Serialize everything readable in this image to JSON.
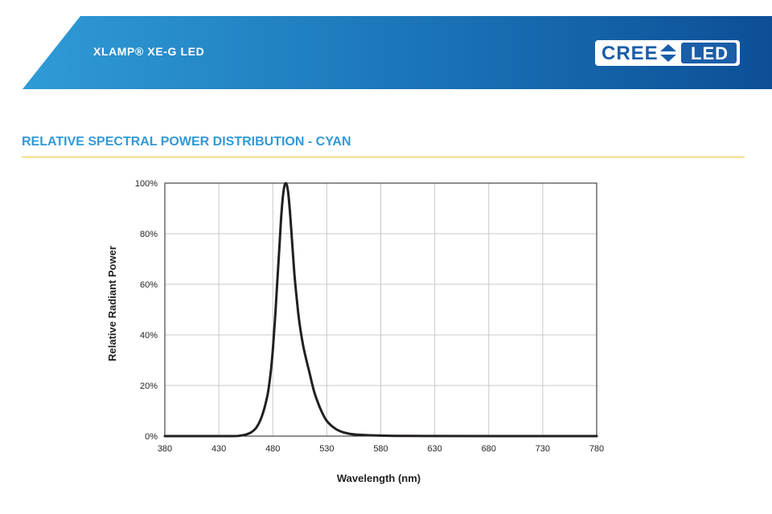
{
  "header": {
    "title": "XLAMP® XE-G LED",
    "logo_text": "CREE",
    "logo_badge": "LED",
    "colors": {
      "band_start": "#2f9bd6",
      "band_end": "#0d4f97",
      "logo_blue": "#1a5ea8"
    }
  },
  "section": {
    "title": "RELATIVE SPECTRAL POWER DISTRIBUTION - CYAN",
    "title_color": "#3399d6",
    "rule_color": "#f5c842"
  },
  "chart_data": {
    "type": "line",
    "title": "",
    "xlabel": "Wavelength (nm)",
    "ylabel": "Relative Radiant Power",
    "xlim": [
      380,
      780
    ],
    "ylim": [
      0,
      100
    ],
    "x_ticks": [
      380,
      430,
      480,
      530,
      580,
      630,
      680,
      730,
      780
    ],
    "y_ticks": [
      0,
      20,
      40,
      60,
      80,
      100
    ],
    "y_tick_labels": [
      "0%",
      "20%",
      "40%",
      "60%",
      "80%",
      "100%"
    ],
    "grid": true,
    "line_color": "#231f20",
    "series": [
      {
        "name": "",
        "x": [
          380,
          440,
          450,
          455,
          460,
          465,
          470,
          475,
          478,
          480,
          482,
          484,
          486,
          488,
          490,
          492,
          494,
          496,
          498,
          500,
          502,
          504,
          506,
          508,
          510,
          514,
          518,
          522,
          526,
          530,
          536,
          542,
          550,
          560,
          580,
          620,
          780
        ],
        "y": [
          0,
          0,
          0.2,
          0.6,
          1.5,
          3.5,
          8,
          16,
          25,
          34,
          46,
          60,
          74,
          88,
          97,
          100,
          97,
          88,
          76,
          64,
          55,
          47,
          41,
          36,
          32,
          25,
          18,
          13,
          9,
          6,
          3.5,
          2,
          1,
          0.5,
          0.2,
          0.05,
          0
        ]
      }
    ]
  }
}
